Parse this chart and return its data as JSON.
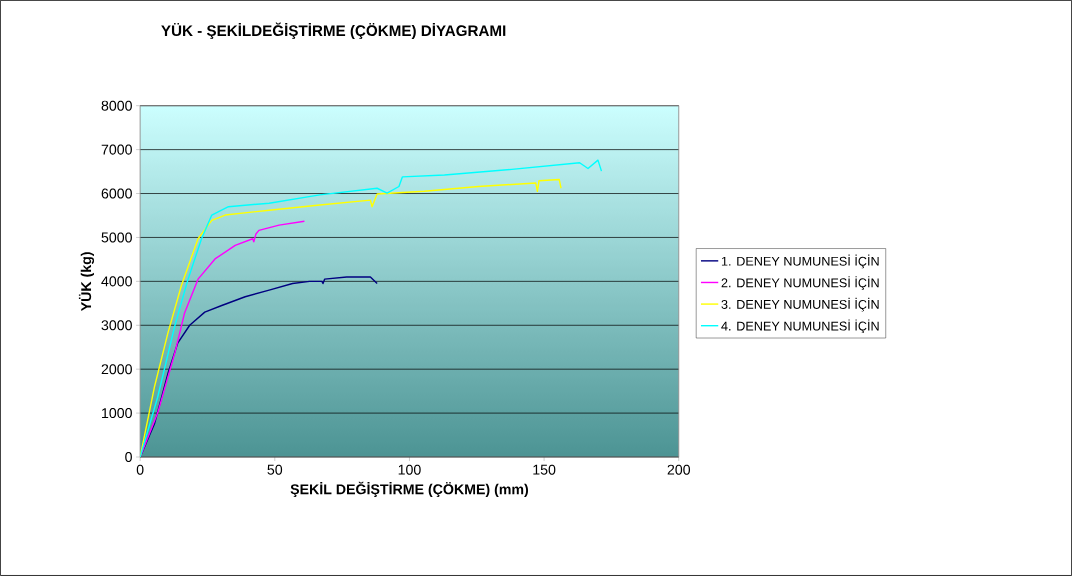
{
  "chart_data": {
    "type": "line",
    "title": "YÜK - ŞEKİLDEĞİŞTİRME (ÇÖKME) DİYAGRAMI",
    "xlabel": "ŞEKİL DEĞİŞTİRME (ÇÖKME) (mm)",
    "ylabel": "YÜK (kg)",
    "xlim": [
      0,
      200
    ],
    "ylim": [
      0,
      8000
    ],
    "xticks": [
      0,
      50,
      100,
      150,
      200
    ],
    "yticks": [
      0,
      1000,
      2000,
      3000,
      4000,
      5000,
      6000,
      7000,
      8000
    ],
    "grid": "y",
    "legend": "right",
    "marker": "none",
    "line_style": "solid",
    "series": [
      {
        "name": "1. DENEY NUMUNESİ İÇİN",
        "color": "#000080",
        "x": [
          0,
          5.3,
          10.3,
          14,
          18.4,
          24,
          30.3,
          39,
          47.9,
          56.6,
          62.9,
          67.5,
          67.9,
          68.5,
          76.7,
          85.5,
          88
        ],
        "values": [
          0,
          750,
          1900,
          2600,
          3000,
          3300,
          3450,
          3650,
          3800,
          3950,
          4000,
          4000,
          3950,
          4050,
          4100,
          4100,
          3950
        ]
      },
      {
        "name": "2. DENEY NUMUNESİ İÇİN",
        "color": "#ff00ff",
        "x": [
          0,
          6.5,
          12.8,
          16.5,
          21.5,
          27.8,
          35.3,
          41.8,
          42.2,
          43,
          44.1,
          51.6,
          61
        ],
        "values": [
          0,
          1000,
          2350,
          3280,
          4050,
          4510,
          4820,
          4970,
          4900,
          5080,
          5160,
          5280,
          5370
        ]
      },
      {
        "name": "3. DENEY NUMUNESİ İÇİN",
        "color": "#ffff00",
        "x": [
          0,
          5.3,
          10.3,
          15.3,
          21.5,
          26.6,
          31.6,
          47.9,
          66.7,
          85.5,
          86.1,
          88,
          105.5,
          125.6,
          146.9,
          147.5,
          148.1,
          155.6,
          156.3
        ],
        "values": [
          0,
          1590,
          2820,
          3900,
          4970,
          5390,
          5510,
          5620,
          5740,
          5850,
          5700,
          5990,
          6050,
          6160,
          6240,
          6050,
          6290,
          6320,
          6120
        ]
      },
      {
        "name": "4. DENEY NUMUNESİ İÇİN",
        "color": "#00ffff",
        "x": [
          0,
          6.5,
          12.8,
          17.8,
          22.8,
          26.6,
          32.8,
          47.9,
          66.7,
          88,
          91.7,
          96.1,
          97.4,
          113,
          138,
          163.2,
          166.3,
          170,
          171.3
        ],
        "values": [
          0,
          1360,
          2970,
          4050,
          4970,
          5510,
          5700,
          5780,
          5970,
          6120,
          6010,
          6160,
          6380,
          6420,
          6550,
          6700,
          6570,
          6760,
          6510
        ]
      }
    ]
  }
}
